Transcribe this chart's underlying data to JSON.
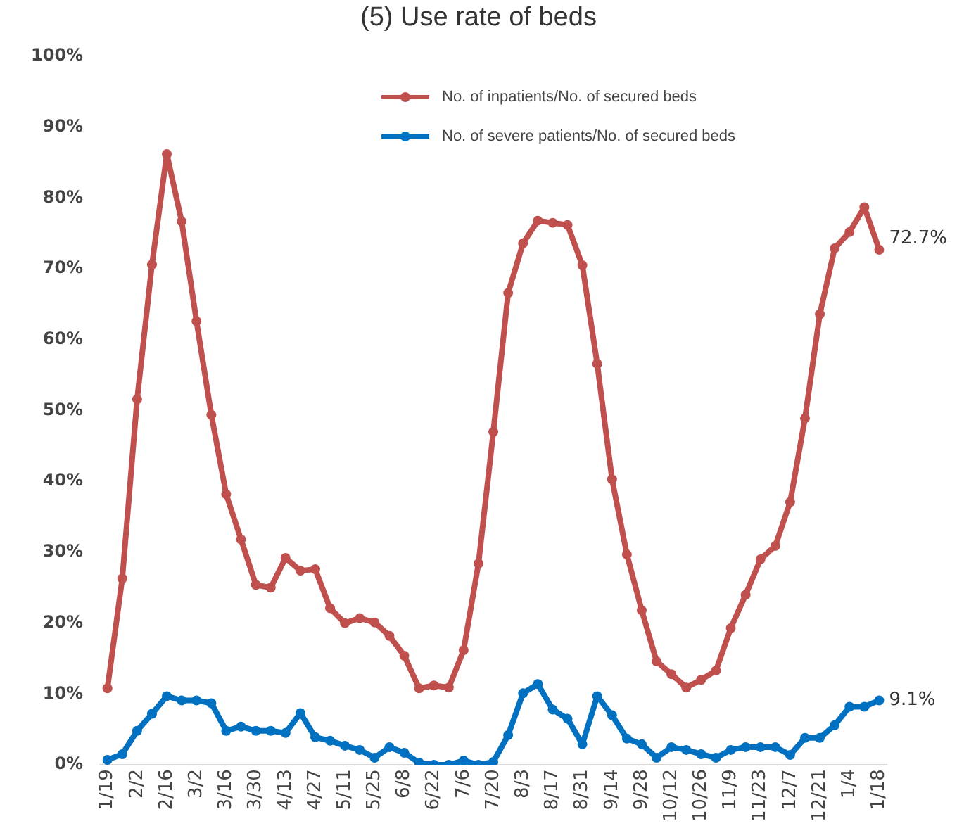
{
  "chart_data": {
    "type": "line",
    "title": "(5) Use rate of beds",
    "categories": [
      "1/19",
      null,
      "2/2",
      null,
      "2/16",
      null,
      "3/2",
      null,
      "3/16",
      null,
      "3/30",
      null,
      "4/13",
      null,
      "4/27",
      null,
      "5/11",
      null,
      "5/25",
      null,
      "6/8",
      null,
      "6/22",
      null,
      "7/6",
      null,
      "7/20",
      null,
      "8/3",
      null,
      "8/17",
      null,
      "8/31",
      null,
      "9/14",
      null,
      "9/28",
      null,
      "10/12",
      null,
      "10/26",
      null,
      "11/9",
      null,
      "11/23",
      null,
      "12/7",
      null,
      "12/21",
      null,
      "1/4",
      null,
      "1/18"
    ],
    "series": [
      {
        "name": "No. of inpatients/No. of secured beds",
        "color": "#c0504d",
        "values": [
          10.8,
          26.3,
          51.6,
          70.6,
          86.2,
          76.7,
          62.6,
          49.4,
          38.2,
          31.8,
          25.4,
          25.0,
          29.2,
          27.4,
          27.6,
          22.1,
          20.0,
          20.7,
          20.1,
          18.2,
          15.4,
          10.8,
          11.2,
          10.9,
          16.2,
          28.4,
          47.0,
          66.6,
          73.6,
          76.8,
          76.5,
          76.2,
          70.5,
          56.6,
          40.3,
          29.7,
          21.8,
          14.6,
          12.8,
          10.9,
          12.0,
          13.3,
          19.3,
          24.0,
          29.0,
          30.9,
          37.1,
          48.9,
          63.6,
          72.9,
          75.2,
          78.7,
          72.7
        ],
        "value_labels": [
          null,
          null,
          null,
          null,
          null,
          null,
          null,
          null,
          null,
          null,
          null,
          null,
          null,
          null,
          null,
          null,
          null,
          null,
          null,
          null,
          null,
          null,
          null,
          null,
          null,
          null,
          null,
          null,
          null,
          null,
          null,
          null,
          null,
          null,
          null,
          null,
          null,
          null,
          null,
          null,
          null,
          null,
          null,
          null,
          null,
          null,
          null,
          null,
          null,
          null,
          null,
          null,
          "72.7%"
        ]
      },
      {
        "name": "No. of severe patients/No. of secured beds",
        "color": "#0070c0",
        "values": [
          0.7,
          1.5,
          4.8,
          7.2,
          9.7,
          9.1,
          9.1,
          8.7,
          4.8,
          5.4,
          4.8,
          4.8,
          4.5,
          7.3,
          3.9,
          3.4,
          2.7,
          2.1,
          1.0,
          2.5,
          1.7,
          0.3,
          0.0,
          0.0,
          0.6,
          0.0,
          0.4,
          4.2,
          10.1,
          11.4,
          7.8,
          6.5,
          2.9,
          9.7,
          7.0,
          3.7,
          2.9,
          1.0,
          2.5,
          2.1,
          1.5,
          1.0,
          2.1,
          2.5,
          2.5,
          2.5,
          1.4,
          3.8,
          3.8,
          5.6,
          8.2,
          8.2,
          9.1
        ],
        "value_labels": [
          null,
          null,
          null,
          null,
          null,
          null,
          null,
          null,
          null,
          null,
          null,
          null,
          null,
          null,
          null,
          null,
          null,
          null,
          null,
          null,
          null,
          null,
          null,
          null,
          null,
          null,
          null,
          null,
          null,
          null,
          null,
          null,
          null,
          null,
          null,
          null,
          null,
          null,
          null,
          null,
          null,
          null,
          null,
          null,
          null,
          null,
          null,
          null,
          null,
          null,
          null,
          null,
          "9.1%"
        ]
      }
    ],
    "ylim": [
      0,
      100
    ],
    "yticks": [
      {
        "value": 0,
        "label": "0%"
      },
      {
        "value": 10,
        "label": "10%"
      },
      {
        "value": 20,
        "label": "20%"
      },
      {
        "value": 30,
        "label": "30%"
      },
      {
        "value": 40,
        "label": "40%"
      },
      {
        "value": 50,
        "label": "50%"
      },
      {
        "value": 60,
        "label": "60%"
      },
      {
        "value": 70,
        "label": "70%"
      },
      {
        "value": 80,
        "label": "80%"
      },
      {
        "value": 90,
        "label": "90%"
      },
      {
        "value": 100,
        "label": "100%"
      }
    ],
    "grid": false,
    "legend": "top right",
    "marker": "circle",
    "line_style": "solid"
  }
}
